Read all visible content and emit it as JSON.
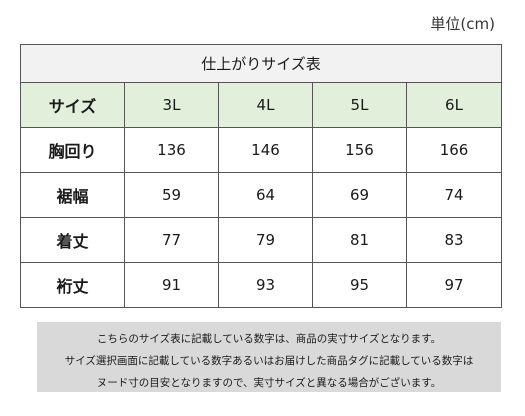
{
  "unit_label": "単位(cm)",
  "table": {
    "title": "仕上がりサイズ表",
    "header": [
      "サイズ",
      "3L",
      "4L",
      "5L",
      "6L"
    ],
    "rows": [
      {
        "label": "胸回り",
        "values": [
          "136",
          "146",
          "156",
          "166"
        ]
      },
      {
        "label": "裾幅",
        "values": [
          "59",
          "64",
          "69",
          "74"
        ]
      },
      {
        "label": "着丈",
        "values": [
          "77",
          "79",
          "81",
          "83"
        ]
      },
      {
        "label": "裄丈",
        "values": [
          "91",
          "93",
          "95",
          "97"
        ]
      }
    ]
  },
  "note": {
    "lines": [
      "こちらのサイズ表に記載している数字は、商品の実寸サイズとなります。",
      "サイズ選択画面に記載している数字あるいはお届けした商品タグに記載している数字は",
      "ヌード寸の目安となりますので、実寸サイズと異なる場合がございます。"
    ]
  },
  "colors": {
    "header_bg": "#e2efda",
    "title_bg": "#f2f2f2",
    "note_bg": "#d9d9d9",
    "border": "#555555"
  }
}
